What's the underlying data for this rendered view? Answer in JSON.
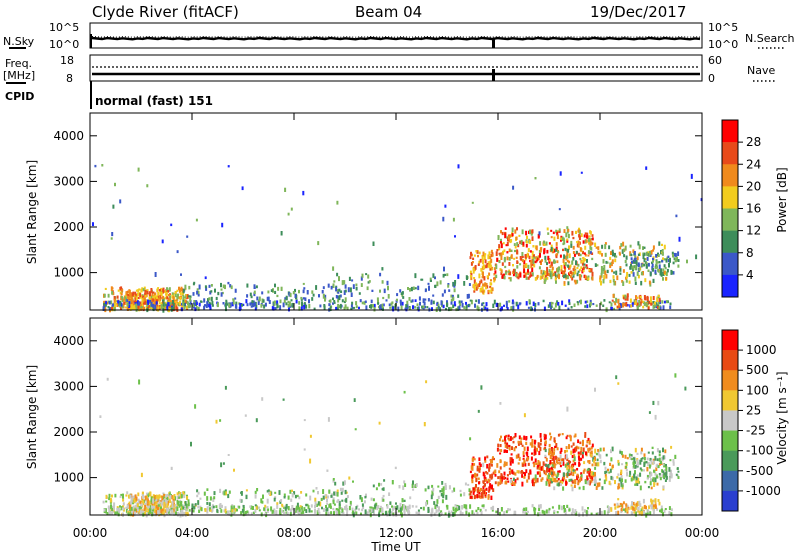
{
  "header": {
    "station": "Clyde River (fitACF)",
    "beam": "Beam 04",
    "date": "19/Dec/2017"
  },
  "panels": {
    "nsky": {
      "left_label": "N.Sky",
      "right_label": "N.Search",
      "left_ticks": [
        "10^5",
        "10^0"
      ],
      "right_ticks": [
        "10^5",
        "10^0"
      ]
    },
    "freq": {
      "left_label_1": "Freq.",
      "left_label_2": "[MHz]",
      "right_label": "Nave",
      "left_ticks": [
        "18",
        "8"
      ],
      "right_ticks": [
        "60",
        "0"
      ]
    },
    "cpid": {
      "label": "CPID",
      "value": "normal (fast) 151"
    }
  },
  "chart_data": [
    {
      "type": "heatmap",
      "title": "",
      "quantity": "Power",
      "xlabel": "",
      "ylabel": "Slant Range [km]",
      "ylim": [
        180,
        4500
      ],
      "yticks": [
        1000,
        2000,
        3000,
        4000
      ],
      "colorbar": {
        "label": "Power [dB]",
        "ticks": [
          "4",
          "8",
          "12",
          "16",
          "20",
          "24",
          "28"
        ],
        "colors": [
          "#1a24ff",
          "#3b58c8",
          "#3d8d5a",
          "#7fb65a",
          "#f2cc1e",
          "#f08a1c",
          "#e84a1a",
          "#ff0000"
        ]
      }
    },
    {
      "type": "heatmap",
      "title": "",
      "quantity": "Velocity",
      "xlabel": "Time UT",
      "ylabel": "Slant Range [km]",
      "ylim": [
        180,
        4500
      ],
      "yticks": [
        1000,
        2000,
        3000,
        4000
      ],
      "xticks": [
        "00:00",
        "04:00",
        "08:00",
        "12:00",
        "16:00",
        "20:00",
        "00:00"
      ],
      "colorbar": {
        "label": "Velocity [m s⁻¹]",
        "ticks": [
          "1000",
          "500",
          "100",
          "25",
          "-25",
          "-100",
          "-500",
          "-1000"
        ],
        "colors": [
          "#2a3fd0",
          "#3c6aa8",
          "#4a9a5a",
          "#6cc04a",
          "#c8c8c8",
          "#f0c832",
          "#f08c1e",
          "#e84a14",
          "#ff0000"
        ]
      }
    }
  ]
}
